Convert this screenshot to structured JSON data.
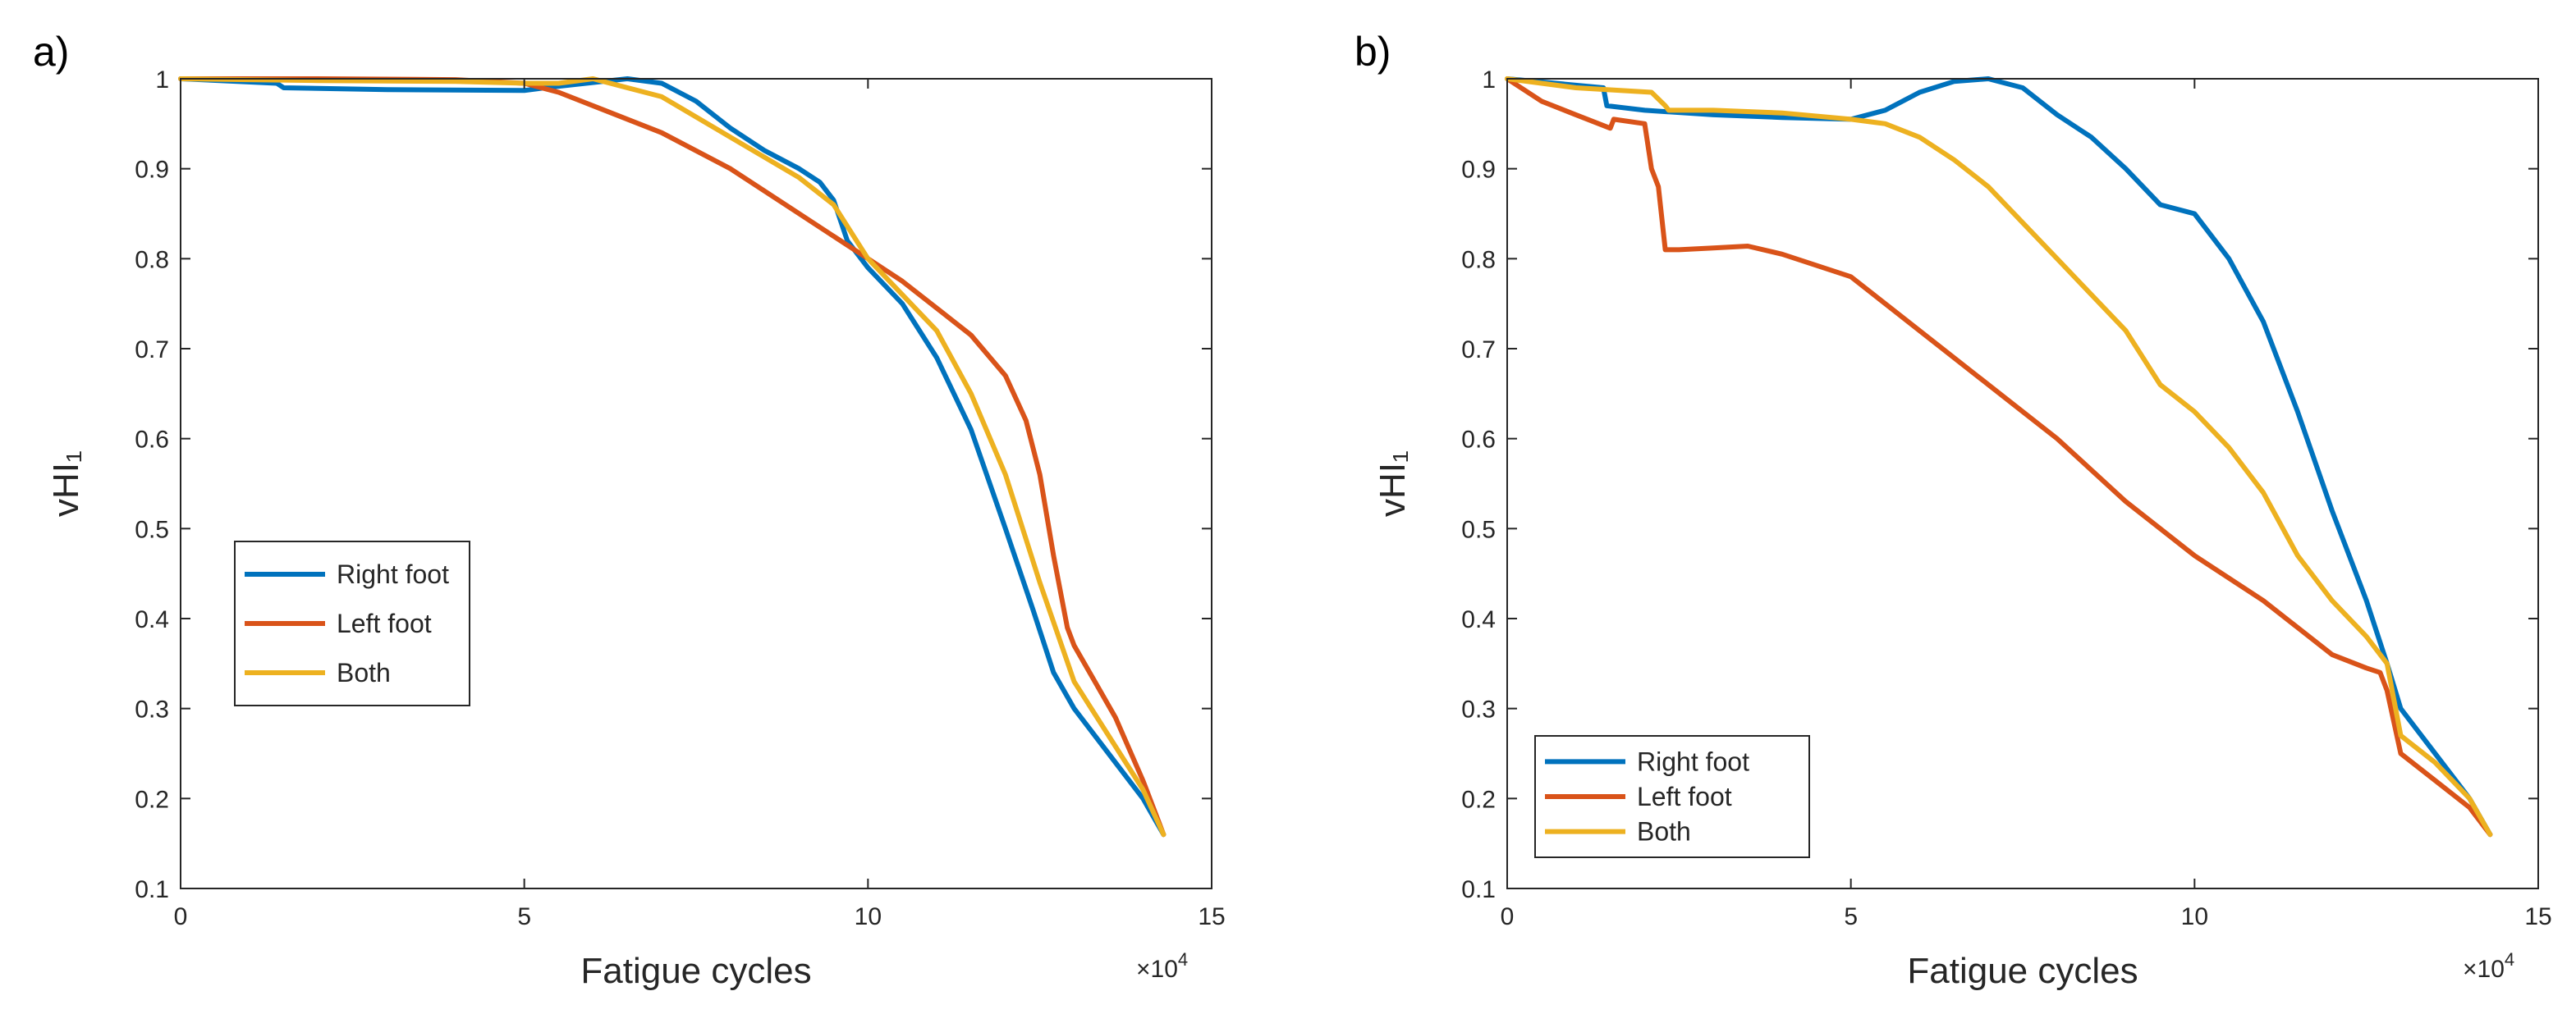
{
  "chart_data": [
    {
      "type": "line",
      "panel_label": "a)",
      "title": "",
      "xlabel": "Fatigue cycles",
      "ylabel": "vHI₁",
      "x_exponent_label": "×10",
      "x_exponent_power": "4",
      "xlim": [
        0,
        15
      ],
      "ylim": [
        0.1,
        1
      ],
      "xticks": [
        0,
        5,
        10,
        15
      ],
      "yticks": [
        0.1,
        0.2,
        0.3,
        0.4,
        0.5,
        0.6,
        0.7,
        0.8,
        0.9,
        1
      ],
      "grid": false,
      "legend_position": "lower-left",
      "series": [
        {
          "name": "Right foot",
          "color": "#0072BD",
          "x": [
            0,
            1.4,
            1.5,
            3,
            5,
            5.3,
            6.5,
            7,
            7.5,
            8,
            8.5,
            9,
            9.3,
            9.5,
            9.7,
            10,
            10.5,
            11,
            11.5,
            12,
            12.4,
            12.7,
            13,
            13.5,
            14,
            14.3
          ],
          "y": [
            1.0,
            0.995,
            0.99,
            0.988,
            0.987,
            0.99,
            1.0,
            0.995,
            0.975,
            0.945,
            0.92,
            0.9,
            0.885,
            0.865,
            0.82,
            0.79,
            0.75,
            0.69,
            0.61,
            0.5,
            0.41,
            0.34,
            0.3,
            0.25,
            0.2,
            0.16
          ]
        },
        {
          "name": "Left foot",
          "color": "#D95319",
          "x": [
            0,
            2,
            4,
            5,
            5.5,
            6,
            7,
            8,
            9,
            10,
            10.5,
            11,
            11.5,
            12,
            12.3,
            12.5,
            12.7,
            12.9,
            13,
            13.3,
            13.6,
            14,
            14.3
          ],
          "y": [
            1.0,
            1.0,
            0.999,
            0.995,
            0.985,
            0.97,
            0.94,
            0.9,
            0.85,
            0.8,
            0.775,
            0.745,
            0.715,
            0.67,
            0.62,
            0.56,
            0.47,
            0.39,
            0.37,
            0.33,
            0.29,
            0.22,
            0.16
          ]
        },
        {
          "name": "Both",
          "color": "#EDB120",
          "x": [
            0,
            2,
            4,
            5,
            5.5,
            6,
            7,
            8,
            9,
            9.5,
            10,
            10.5,
            11,
            11.5,
            12,
            12.5,
            13,
            13.5,
            14,
            14.3
          ],
          "y": [
            1.0,
            0.998,
            0.997,
            0.995,
            0.995,
            1.0,
            0.98,
            0.935,
            0.89,
            0.86,
            0.8,
            0.76,
            0.72,
            0.65,
            0.56,
            0.44,
            0.33,
            0.27,
            0.21,
            0.16
          ]
        }
      ],
      "legend_entries": [
        "Right foot",
        "Left foot",
        "Both"
      ]
    },
    {
      "type": "line",
      "panel_label": "b)",
      "title": "",
      "xlabel": "Fatigue cycles",
      "ylabel": "vHI₁",
      "x_exponent_label": "×10",
      "x_exponent_power": "4",
      "xlim": [
        0,
        15
      ],
      "ylim": [
        0.1,
        1
      ],
      "xticks": [
        0,
        5,
        10,
        15
      ],
      "yticks": [
        0.1,
        0.2,
        0.3,
        0.4,
        0.5,
        0.6,
        0.7,
        0.8,
        0.9,
        1
      ],
      "grid": false,
      "legend_position": "lower-left",
      "series": [
        {
          "name": "Right foot",
          "color": "#0072BD",
          "x": [
            0,
            1.4,
            1.45,
            2,
            3,
            4,
            5,
            5.5,
            6,
            6.5,
            7,
            7.5,
            8,
            8.5,
            9,
            9.5,
            10,
            10.5,
            11,
            11.5,
            12,
            12.5,
            12.8,
            13,
            13.5,
            14,
            14.3
          ],
          "y": [
            1.0,
            0.99,
            0.97,
            0.965,
            0.96,
            0.957,
            0.955,
            0.965,
            0.985,
            0.997,
            1.0,
            0.99,
            0.96,
            0.935,
            0.9,
            0.86,
            0.85,
            0.8,
            0.73,
            0.63,
            0.52,
            0.42,
            0.35,
            0.3,
            0.25,
            0.2,
            0.16
          ]
        },
        {
          "name": "Left foot",
          "color": "#D95319",
          "x": [
            0,
            0.5,
            1,
            1.5,
            1.55,
            2,
            2.1,
            2.2,
            2.3,
            2.5,
            3,
            3.5,
            4,
            5,
            6,
            7,
            8,
            9,
            10,
            11,
            12,
            12.5,
            12.7,
            12.8,
            13,
            13.5,
            14,
            14.3
          ],
          "y": [
            1.0,
            0.975,
            0.96,
            0.945,
            0.955,
            0.95,
            0.9,
            0.88,
            0.81,
            0.81,
            0.812,
            0.814,
            0.805,
            0.78,
            0.72,
            0.66,
            0.6,
            0.53,
            0.47,
            0.42,
            0.36,
            0.345,
            0.34,
            0.32,
            0.25,
            0.22,
            0.19,
            0.16
          ]
        },
        {
          "name": "Both",
          "color": "#EDB120",
          "x": [
            0,
            1,
            2.1,
            2.3,
            2.35,
            3,
            4,
            5,
            5.5,
            6,
            6.5,
            7,
            7.5,
            8,
            8.5,
            9,
            9.5,
            10,
            10.5,
            11,
            11.5,
            12,
            12.5,
            12.8,
            13,
            13.5,
            14,
            14.3
          ],
          "y": [
            1.0,
            0.99,
            0.985,
            0.97,
            0.965,
            0.965,
            0.962,
            0.955,
            0.95,
            0.935,
            0.91,
            0.88,
            0.84,
            0.8,
            0.76,
            0.72,
            0.66,
            0.63,
            0.59,
            0.54,
            0.47,
            0.42,
            0.38,
            0.35,
            0.27,
            0.24,
            0.2,
            0.16
          ]
        }
      ],
      "legend_entries": [
        "Right foot",
        "Left foot",
        "Both"
      ]
    }
  ]
}
